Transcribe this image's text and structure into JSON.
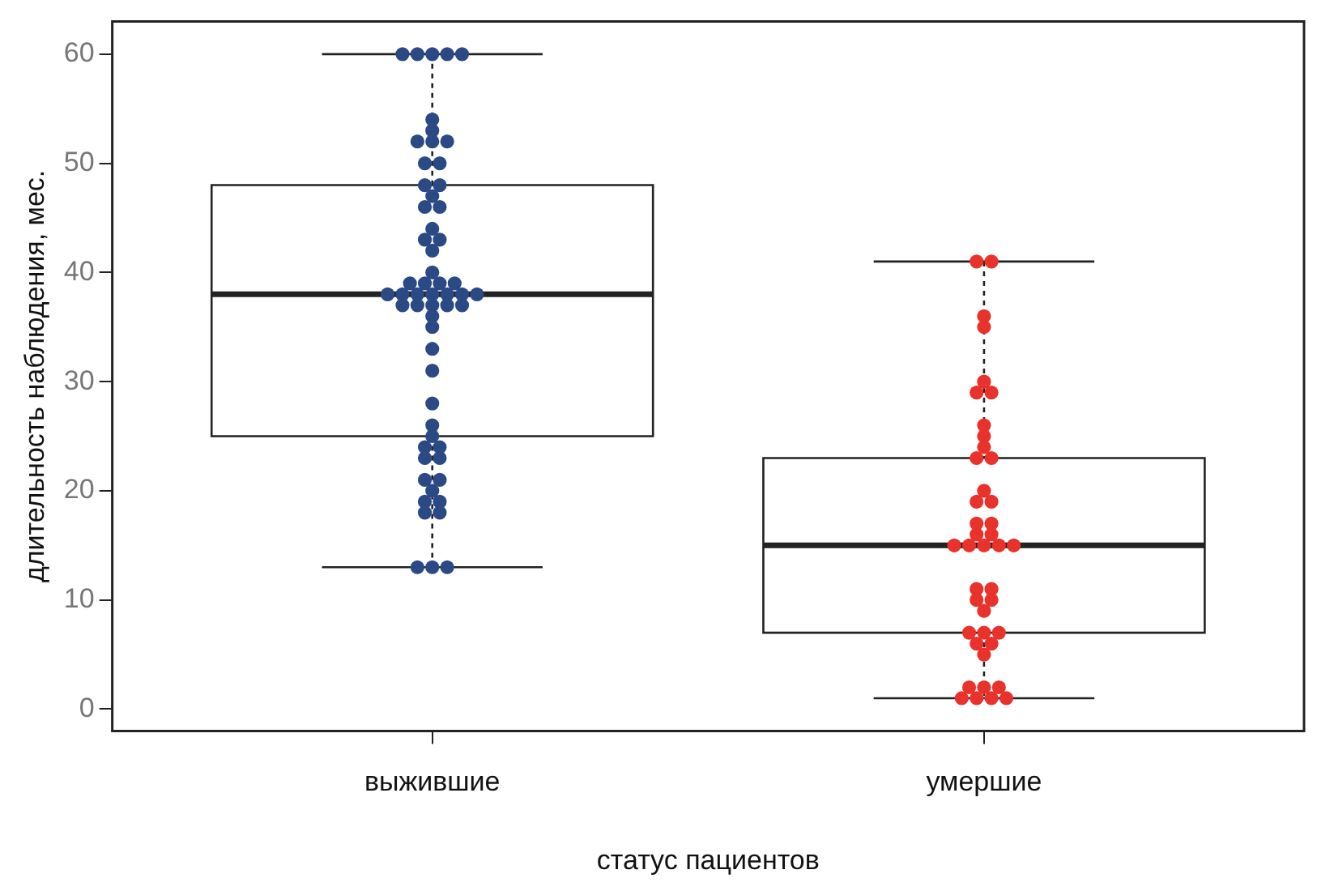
{
  "chart_data": {
    "type": "box",
    "xlabel": "статус пациентов",
    "ylabel": "длительность наблюдения, мес.",
    "categories": [
      "выжившие",
      "умершие"
    ],
    "boxes": [
      {
        "low": 13,
        "q1": 25,
        "median": 38,
        "q3": 48,
        "high": 60
      },
      {
        "low": 1,
        "q1": 7,
        "median": 15,
        "q3": 23,
        "high": 41
      }
    ],
    "color": "#222222",
    "ylim": [
      -2,
      63
    ],
    "yticks": [
      0,
      10,
      20,
      30,
      40,
      50,
      60
    ],
    "grid": false,
    "legend": false,
    "marker": "circle",
    "series": [
      {
        "type": "scatter",
        "color": "#2b4a85",
        "x": [
          "выжившие",
          "выжившие",
          "выжившие",
          "выжившие",
          "выжившие",
          "выжившие",
          "выжившие",
          "выжившие",
          "выжившие",
          "выжившие",
          "выжившие",
          "выжившие",
          "выжившие",
          "выжившие",
          "выжившие",
          "выжившие",
          "выжившие",
          "выжившие",
          "выжившие",
          "выжившие",
          "выжившие",
          "выжившие",
          "выжившие",
          "выжившие",
          "выжившие",
          "выжившие",
          "выжившие",
          "выжившие",
          "выжившие",
          "выжившие",
          "выжившие",
          "выжившие",
          "выжившие",
          "выжившие",
          "выжившие",
          "выжившие",
          "выжившие",
          "выжившие",
          "выжившие",
          "выжившие",
          "выжившие",
          "выжившие",
          "выжившие",
          "выжившие",
          "выжившие",
          "выжившие",
          "выжившие",
          "выжившие",
          "выжившие",
          "выжившие",
          "выжившие",
          "выжившие",
          "выжившие",
          "выжившие",
          "выжившие",
          "выжившие",
          "выжившие",
          "выжившие",
          "выжившие"
        ],
        "values": [
          60,
          60,
          60,
          60,
          60,
          54,
          53,
          52,
          52,
          52,
          50,
          50,
          48,
          48,
          47,
          46,
          46,
          44,
          43,
          43,
          42,
          40,
          39,
          39,
          39,
          39,
          38,
          38,
          38,
          38,
          38,
          38,
          38,
          37,
          37,
          37,
          37,
          37,
          36,
          35,
          33,
          31,
          28,
          26,
          25,
          24,
          24,
          23,
          23,
          21,
          21,
          20,
          19,
          19,
          18,
          18,
          13,
          13,
          13
        ]
      },
      {
        "type": "scatter",
        "color": "#e8322b",
        "x": [
          "умершие",
          "умершие",
          "умершие",
          "умершие",
          "умершие",
          "умершие",
          "умершие",
          "умершие",
          "умершие",
          "умершие",
          "умершие",
          "умершие",
          "умершие",
          "умершие",
          "умершие",
          "умершие",
          "умершие",
          "умершие",
          "умершие",
          "умершие",
          "умершие",
          "умершие",
          "умершие",
          "умершие",
          "умершие",
          "умершие",
          "умершие",
          "умершие",
          "умершие",
          "умершие",
          "умершие",
          "умершие",
          "умершие",
          "умершие",
          "умершие",
          "умершие",
          "умершие",
          "умершие",
          "умершие",
          "умершие",
          "умершие",
          "умершие"
        ],
        "values": [
          41,
          41,
          36,
          35,
          30,
          29,
          29,
          26,
          25,
          24,
          23,
          23,
          20,
          19,
          19,
          17,
          17,
          16,
          16,
          15,
          15,
          15,
          15,
          15,
          11,
          11,
          10,
          10,
          9,
          7,
          7,
          7,
          6,
          6,
          5,
          2,
          2,
          2,
          1,
          1,
          1,
          1
        ]
      }
    ]
  }
}
